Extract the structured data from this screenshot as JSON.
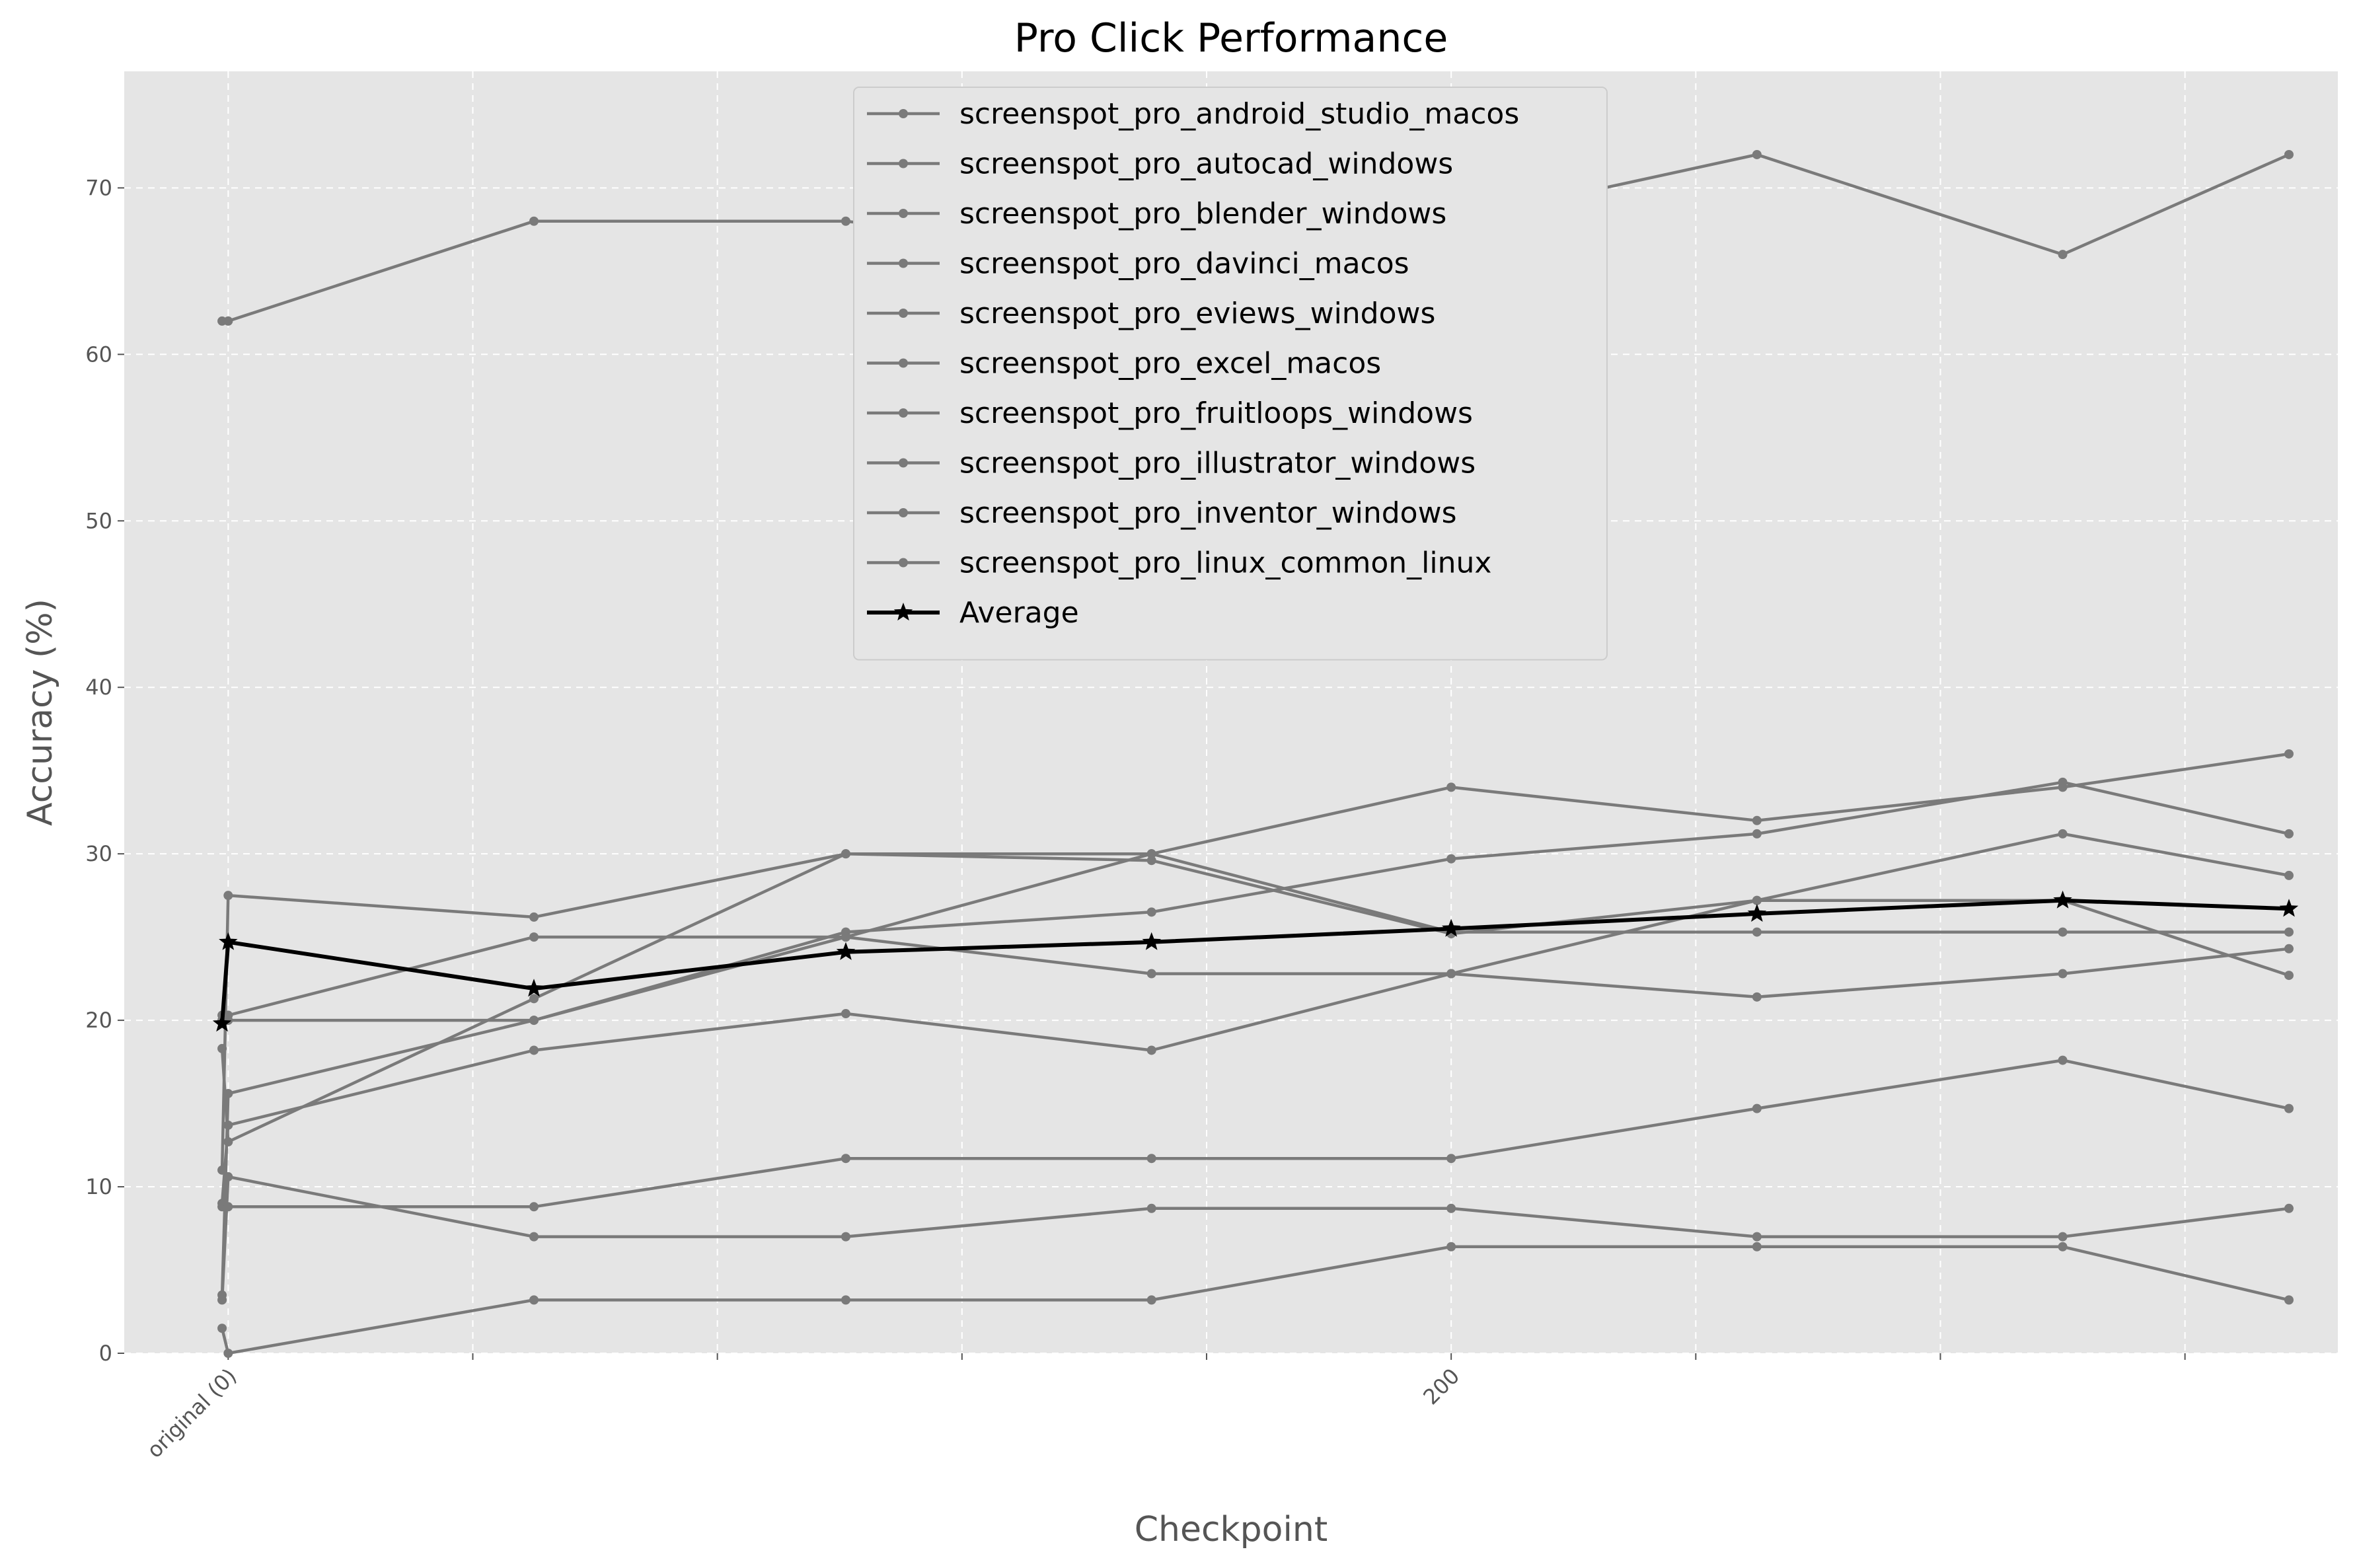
{
  "chart_data": {
    "type": "line",
    "title": "Pro Click Performance",
    "xlabel": "Checkpoint",
    "ylabel": "Accuracy (%)",
    "xlim": [
      -17,
      345
    ],
    "ylim": [
      0,
      77
    ],
    "xticks": [
      {
        "value": 0,
        "label": "original (0)"
      },
      {
        "value": 40,
        "label": ""
      },
      {
        "value": 80,
        "label": ""
      },
      {
        "value": 120,
        "label": ""
      },
      {
        "value": 160,
        "label": ""
      },
      {
        "value": 200,
        "label": "200"
      },
      {
        "value": 240,
        "label": ""
      },
      {
        "value": 280,
        "label": ""
      },
      {
        "value": 320,
        "label": ""
      }
    ],
    "yticks": [
      0,
      10,
      20,
      30,
      40,
      50,
      60,
      70
    ],
    "grid": true,
    "legend_position": "upper-center",
    "colors": {
      "series": "#7a7a7a",
      "average": "#000000",
      "plot_bg": "#e5e5e5",
      "grid": "#ffffff"
    },
    "series": [
      {
        "name": "screenspot_pro_android_studio_macos",
        "x": [
          -1,
          0,
          50,
          101,
          151,
          200,
          250,
          300,
          337
        ],
        "y": [
          62,
          62,
          68,
          68,
          66,
          68,
          72,
          66,
          72
        ]
      },
      {
        "name": "screenspot_pro_autocad_windows",
        "x": [
          -1,
          0,
          50,
          101,
          151,
          200,
          250,
          300,
          337
        ],
        "y": [
          1.5,
          0,
          3.2,
          3.2,
          3.2,
          6.4,
          6.4,
          6.4,
          3.2
        ]
      },
      {
        "name": "screenspot_pro_blender_windows",
        "x": [
          -1,
          0,
          50,
          101,
          151,
          200,
          250,
          300,
          337
        ],
        "y": [
          18.3,
          12.7,
          21.3,
          30,
          30,
          25.3,
          25.3,
          25.3,
          25.3
        ]
      },
      {
        "name": "screenspot_pro_davinci_macos",
        "x": [
          -1,
          0,
          50,
          101,
          151,
          200,
          250,
          300,
          337
        ],
        "y": [
          11,
          27.5,
          26.2,
          30,
          29.6,
          25.2,
          27.2,
          27.2,
          22.7
        ]
      },
      {
        "name": "screenspot_pro_eviews_windows",
        "x": [
          -1,
          0,
          50,
          101,
          151,
          200,
          250,
          300,
          337
        ],
        "y": [
          9,
          13.7,
          18.2,
          20.4,
          18.2,
          22.8,
          27.2,
          31.2,
          28.7
        ]
      },
      {
        "name": "screenspot_pro_excel_macos",
        "x": [
          -1,
          0,
          50,
          101,
          151,
          200,
          250,
          300,
          337
        ],
        "y": [
          3.5,
          15.6,
          20,
          25.3,
          26.5,
          29.7,
          31.2,
          34.3,
          31.2
        ]
      },
      {
        "name": "screenspot_pro_fruitloops_windows",
        "x": [
          -1,
          0,
          50,
          101,
          151,
          200,
          250,
          300,
          337
        ],
        "y": [
          3.2,
          10.6,
          7,
          7,
          8.7,
          8.7,
          7,
          7,
          8.7
        ]
      },
      {
        "name": "screenspot_pro_illustrator_windows",
        "x": [
          -1,
          0,
          50,
          101,
          151,
          200,
          250,
          300,
          337
        ],
        "y": [
          8.8,
          8.8,
          8.8,
          11.7,
          11.7,
          11.7,
          14.7,
          17.6,
          14.7
        ]
      },
      {
        "name": "screenspot_pro_inventor_windows",
        "x": [
          -1,
          0,
          50,
          101,
          151,
          200,
          250,
          300,
          337
        ],
        "y": [
          20,
          20,
          20,
          25,
          30,
          34,
          32,
          34,
          36
        ]
      },
      {
        "name": "screenspot_pro_linux_common_linux",
        "x": [
          -1,
          0,
          50,
          101,
          151,
          200,
          250,
          300,
          337
        ],
        "y": [
          20.3,
          20.3,
          25,
          25,
          22.8,
          22.8,
          21.4,
          22.8,
          24.3
        ]
      },
      {
        "name": "Average",
        "x": [
          -1,
          0,
          50,
          101,
          151,
          200,
          250,
          300,
          337
        ],
        "y": [
          19.8,
          24.7,
          21.9,
          24.1,
          24.7,
          25.5,
          26.4,
          27.2,
          26.7
        ]
      }
    ]
  }
}
